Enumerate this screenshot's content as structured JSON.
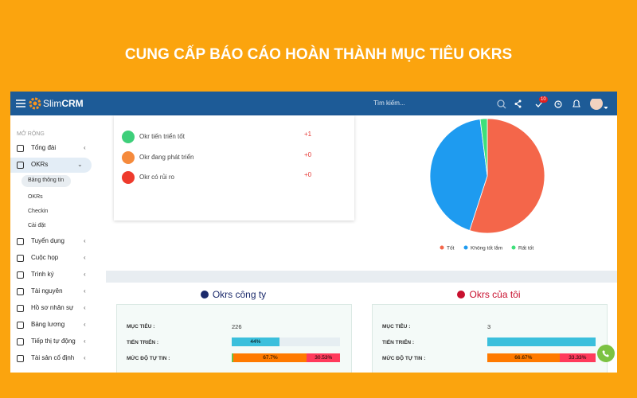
{
  "header": {
    "title": "CUNG CẤP BÁO CÁO HOÀN THÀNH MỤC TIÊU OKRS"
  },
  "topbar": {
    "logo_a": "Slim",
    "logo_b": "CRM",
    "search": "Tìm kiếm...",
    "badge": "10"
  },
  "sidebar": {
    "section": "MỞ RỘNG",
    "items": [
      {
        "label": "Tổng đài"
      },
      {
        "label": "OKRs",
        "active": true,
        "children": [
          "Bảng thông tin",
          "OKRs",
          "Checkin",
          "Cài đặt"
        ]
      },
      {
        "label": "Tuyển dụng"
      },
      {
        "label": "Cuộc họp"
      },
      {
        "label": "Trình ký"
      },
      {
        "label": "Tài nguyên"
      },
      {
        "label": "Hồ sơ nhân sự"
      },
      {
        "label": "Bảng lương"
      },
      {
        "label": "Tiếp thị tự động"
      },
      {
        "label": "Tài sản cố định"
      }
    ]
  },
  "status_list": [
    {
      "label": "Okr tiến triển tốt",
      "change": "+1",
      "color": "#3ecf7a"
    },
    {
      "label": "Okr đang phát triển",
      "change": "+0",
      "color": "#f58a3c"
    },
    {
      "label": "Okr có rủi ro",
      "change": "+0",
      "color": "#ee3a2c"
    }
  ],
  "pie": {
    "type": "pie",
    "labels": [
      "Tốt",
      "Không tốt lắm",
      "Rất tốt"
    ],
    "values": [
      55,
      43,
      2
    ],
    "colors": [
      "#f4664a",
      "#1e9bf0",
      "#3ee07a"
    ]
  },
  "panels": [
    {
      "title": "Okrs công ty",
      "color": "#1b2a6b",
      "target_label": "MỤC TIÊU :",
      "target": 226,
      "progress_label": "TIẾN TRIỂN :",
      "progress": {
        "value": 44,
        "label": "44%"
      },
      "confidence_label": "MỨC ĐỘ TỰ TIN :",
      "confidence": [
        {
          "value": 1.77,
          "color": "#6cc24a"
        },
        {
          "value": 67.7,
          "label": "67.7%",
          "color": "#ff7a00"
        },
        {
          "value": 30.53,
          "label": "30.53%",
          "color": "#ff3b5c"
        }
      ]
    },
    {
      "title": "Okrs của tôi",
      "color": "#c8102e",
      "target_label": "MỤC TIÊU :",
      "target": 3,
      "progress_label": "TIẾN TRIỂN :",
      "progress": {
        "value": 100
      },
      "confidence_label": "MỨC ĐỘ TỰ TIN :",
      "confidence": [
        {
          "value": 66.67,
          "label": "66.67%",
          "color": "#ff7a00"
        },
        {
          "value": 33.33,
          "label": "33.33%",
          "color": "#ff3b5c"
        }
      ]
    }
  ]
}
